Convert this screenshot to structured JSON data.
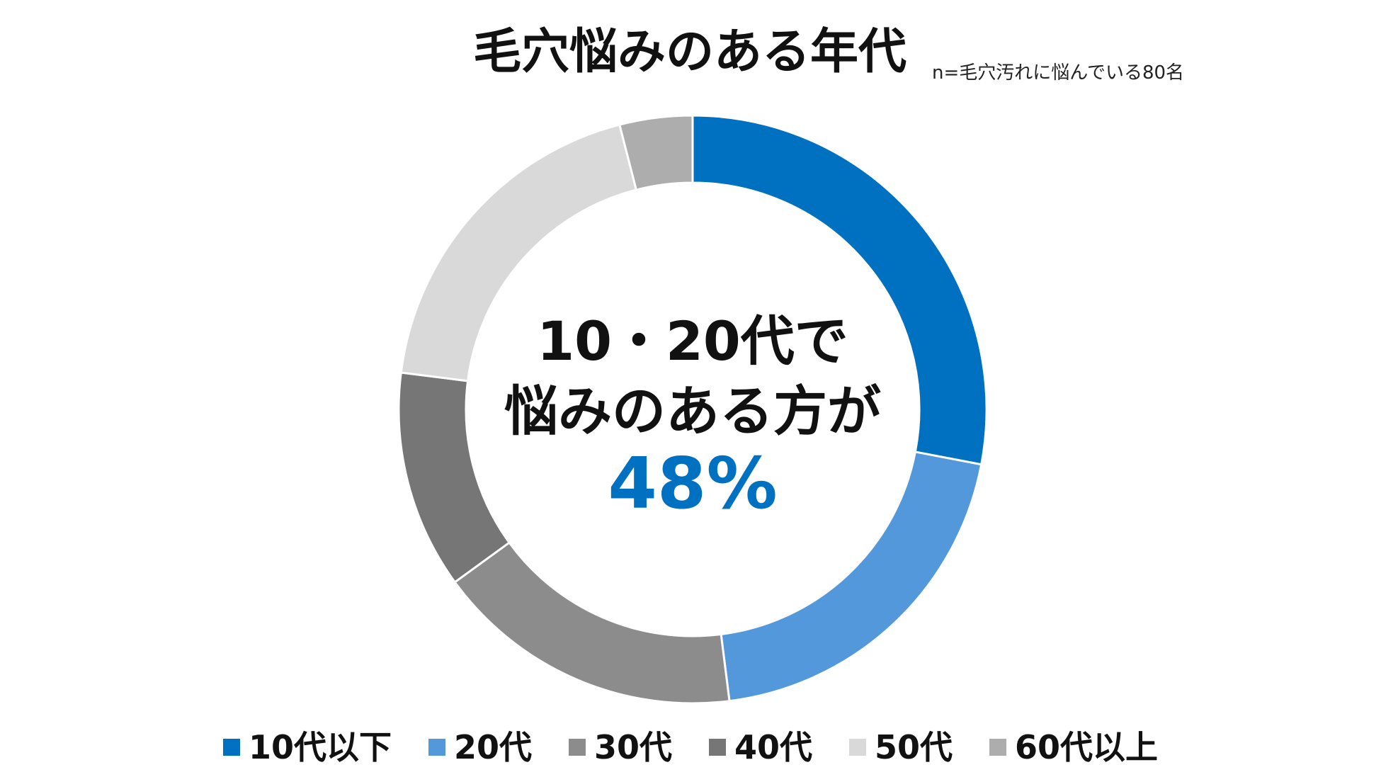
{
  "chart_data": {
    "type": "pie",
    "variant": "donut",
    "title": "毛穴悩みのある年代",
    "subtitle": "n=毛穴汚れに悩んでいる80名",
    "categories": [
      "10代以下",
      "20代",
      "30代",
      "40代",
      "50代",
      "60代以上"
    ],
    "values": [
      28,
      20,
      17,
      12,
      19,
      4
    ],
    "unit": "%",
    "colors": [
      "#0070C0",
      "#5398DA",
      "#8C8C8C",
      "#767676",
      "#D9D9D9",
      "#ADADAD"
    ],
    "center_text": {
      "line1": "10・20代で",
      "line2": "悩みのある方が",
      "highlight": "48%",
      "highlight_color": "#0070C0"
    },
    "legend_position": "bottom"
  }
}
